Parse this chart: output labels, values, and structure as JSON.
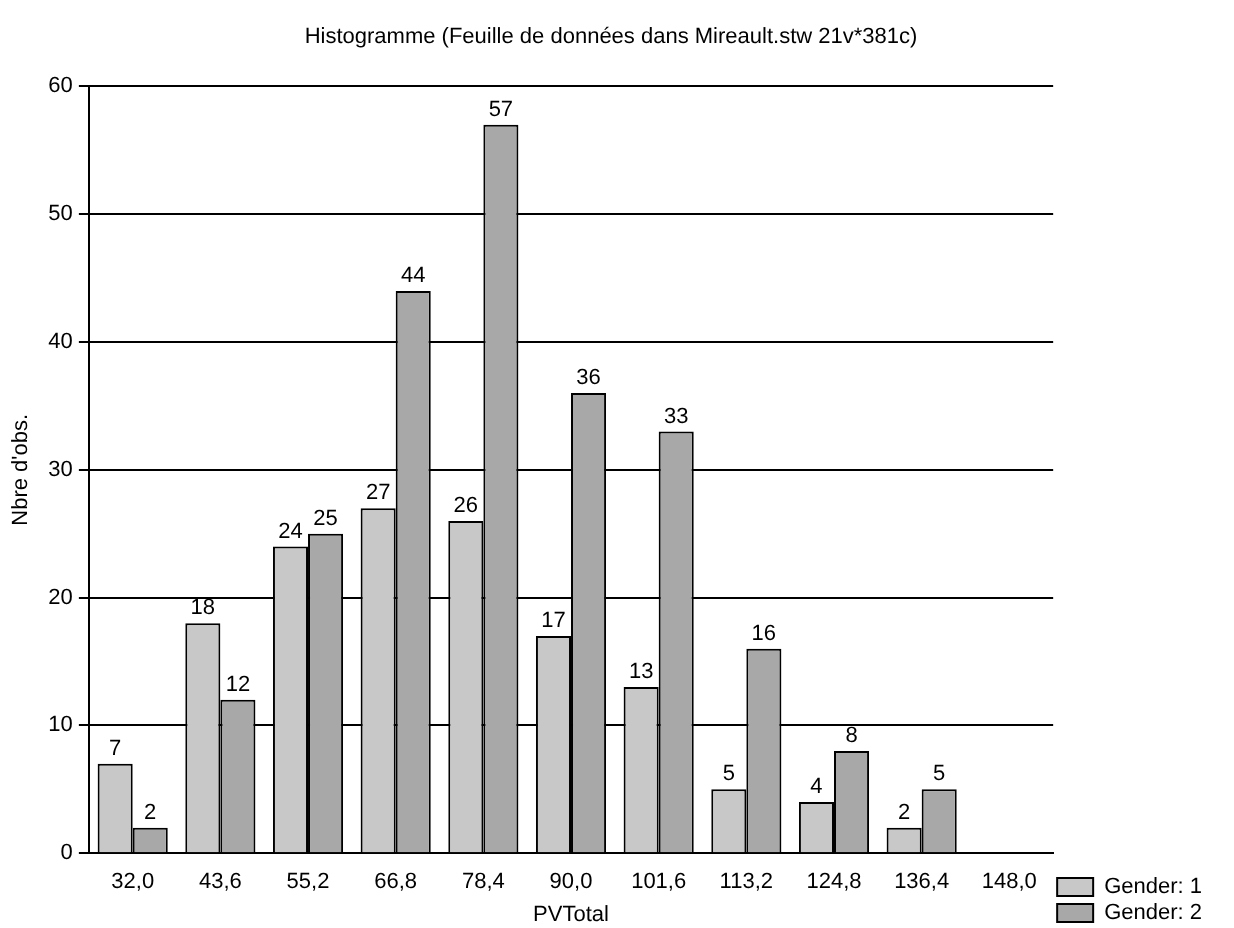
{
  "chart_data": {
    "type": "bar",
    "title": "Histogramme (Feuille de données dans Mireault.stw 21v*381c)",
    "xlabel": "PVTotal",
    "ylabel": "Nbre d'obs.",
    "categories": [
      "32,0",
      "43,6",
      "55,2",
      "66,8",
      "78,4",
      "90,0",
      "101,6",
      "113,2",
      "124,8",
      "136,4",
      "148,0"
    ],
    "series": [
      {
        "name": "Gender: 1",
        "color": "#c8c8c8",
        "values": [
          7,
          18,
          24,
          27,
          26,
          17,
          13,
          5,
          4,
          2,
          null
        ]
      },
      {
        "name": "Gender: 2",
        "color": "#a8a8a8",
        "values": [
          2,
          12,
          25,
          44,
          57,
          36,
          33,
          16,
          8,
          5,
          null
        ]
      }
    ],
    "ylim": [
      0,
      60
    ],
    "yticks": [
      0,
      10,
      20,
      30,
      40,
      50,
      60
    ],
    "grid": "y",
    "legend": "bottom right",
    "data_labels": true
  }
}
